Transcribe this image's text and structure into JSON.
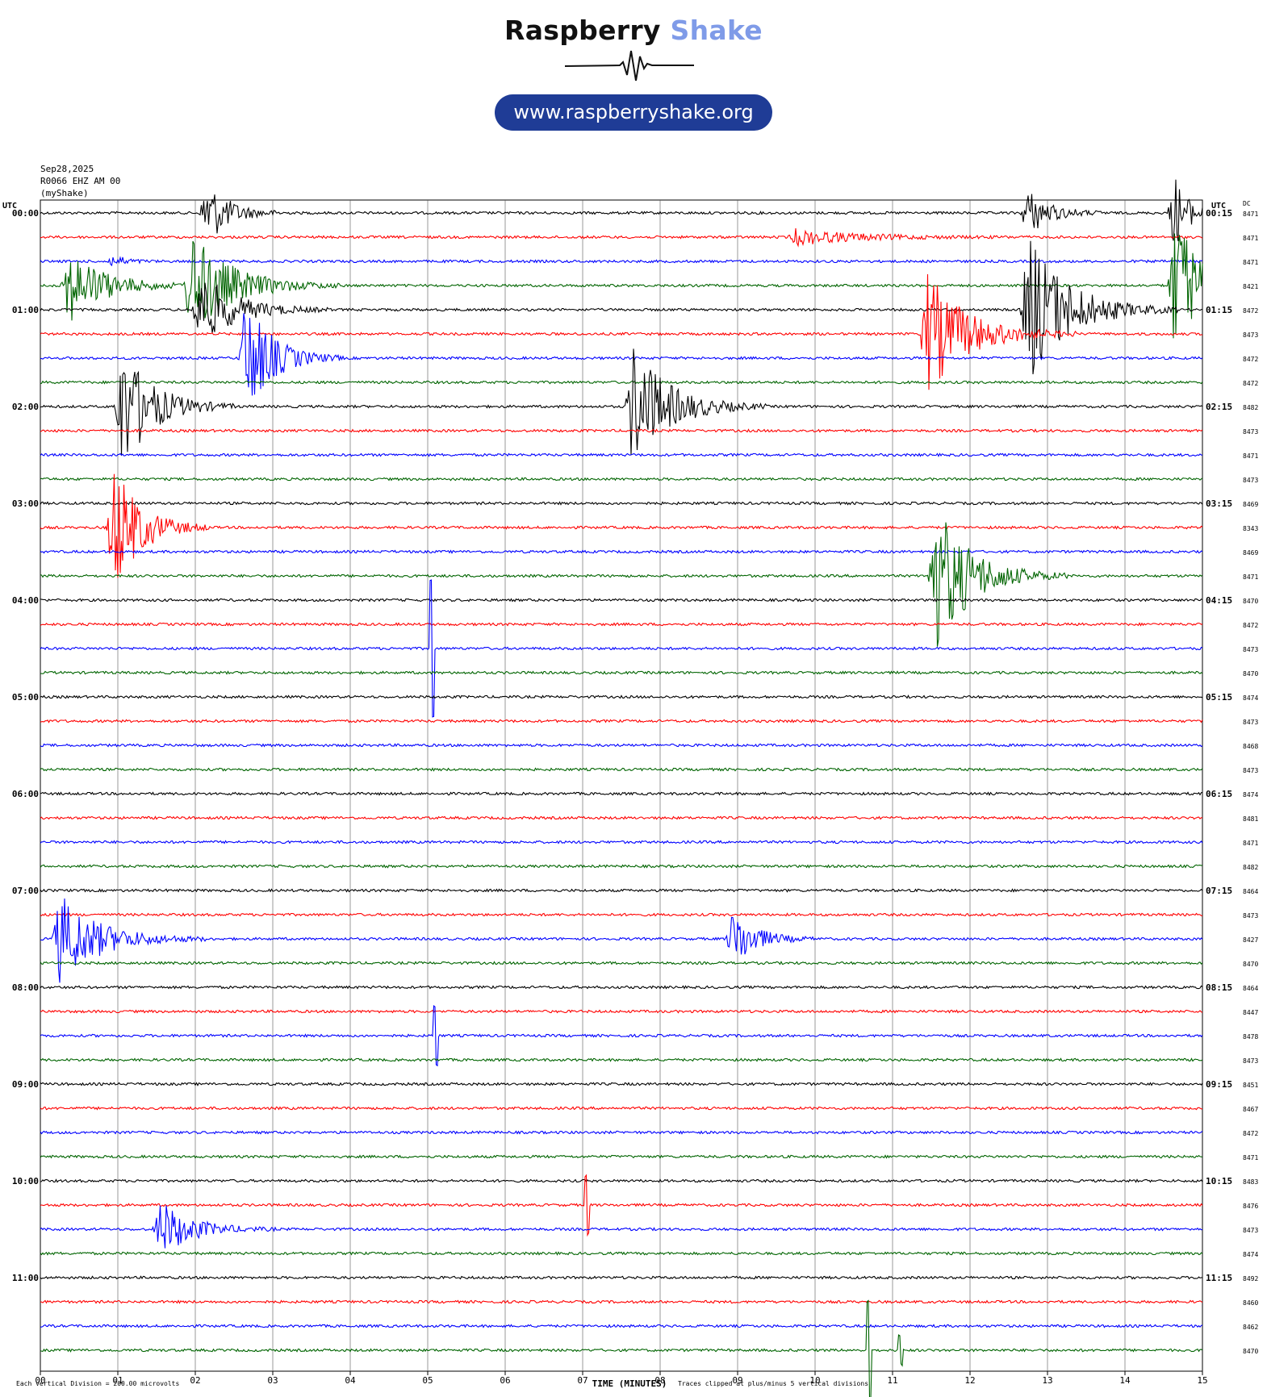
{
  "brand": {
    "name_part1": "Raspberry",
    "name_part2": "Shake",
    "url": "www.raspberryshake.org",
    "colors": {
      "dark": "#111111",
      "light_blue": "#7f9be8",
      "pill": "#1f3c96"
    }
  },
  "header": {
    "date": "Sep28,2025",
    "station": "R0066 EHZ AM 00",
    "network": "(myShake)"
  },
  "chart_data": {
    "type": "helicorder",
    "left_axis_title": "UTC",
    "right_axis_title": "UTC",
    "dc_title": "DC",
    "left_labels": [
      "00:00",
      "01:00",
      "02:00",
      "03:00",
      "04:00",
      "05:00",
      "06:00",
      "07:00",
      "08:00",
      "09:00",
      "10:00",
      "11:00"
    ],
    "right_labels": [
      "00:15",
      "01:15",
      "02:15",
      "03:15",
      "04:15",
      "05:15",
      "06:15",
      "07:15",
      "08:15",
      "09:15",
      "10:15",
      "11:15"
    ],
    "dc_values": [
      "8471",
      "8471",
      "8471",
      "8421",
      "8472",
      "8473",
      "8472",
      "8472",
      "8482",
      "8473",
      "8471",
      "8473",
      "8469",
      "8343",
      "8469",
      "8471",
      "8470",
      "8472",
      "8473",
      "8470",
      "8474",
      "8473",
      "8468",
      "8473",
      "8474",
      "8481",
      "8471",
      "8482",
      "8464",
      "8473",
      "8427",
      "8470",
      "8464",
      "8447",
      "8478",
      "8473",
      "8451",
      "8467",
      "8472",
      "8471",
      "8483",
      "8476",
      "8473",
      "8474",
      "8492",
      "8460",
      "8462",
      "8470"
    ],
    "trace_colors": [
      "#000000",
      "#ff0000",
      "#0000ff",
      "#006400"
    ],
    "x_ticks": [
      "00",
      "01",
      "02",
      "03",
      "04",
      "05",
      "06",
      "07",
      "08",
      "09",
      "10",
      "11",
      "12",
      "13",
      "14",
      "15"
    ],
    "x_label": "TIME (MINUTES)",
    "footer_left": "Each Vertical Division =  200.00 microvolts",
    "footer_right": "Traces clipped at plus/minus 5 vertical divisions",
    "rows_per_hour": 4,
    "minutes_per_row": 15,
    "events": [
      {
        "row": 0,
        "minute": 2.1,
        "amp": 1.7,
        "dur": 0.5,
        "kind": "quake"
      },
      {
        "row": 0,
        "minute": 12.7,
        "amp": 1.2,
        "dur": 0.5,
        "kind": "quake"
      },
      {
        "row": 0,
        "minute": 14.6,
        "amp": 2.0,
        "dur": 0.3,
        "kind": "quake"
      },
      {
        "row": 1,
        "minute": 9.7,
        "amp": 0.4,
        "dur": 1.4,
        "kind": "quake"
      },
      {
        "row": 2,
        "minute": 0.9,
        "amp": 0.3,
        "dur": 0.3,
        "kind": "quake"
      },
      {
        "row": 3,
        "minute": 0.3,
        "amp": 2.0,
        "dur": 0.8,
        "kind": "quake"
      },
      {
        "row": 3,
        "minute": 1.9,
        "amp": 2.8,
        "dur": 0.9,
        "kind": "quake"
      },
      {
        "row": 3,
        "minute": 14.6,
        "amp": 4.0,
        "dur": 0.6,
        "kind": "quake"
      },
      {
        "row": 4,
        "minute": 2.0,
        "amp": 2.0,
        "dur": 0.8,
        "kind": "quake"
      },
      {
        "row": 4,
        "minute": 12.7,
        "amp": 4.0,
        "dur": 0.9,
        "kind": "quake"
      },
      {
        "row": 5,
        "minute": 11.4,
        "amp": 3.2,
        "dur": 0.9,
        "kind": "quake"
      },
      {
        "row": 6,
        "minute": 2.6,
        "amp": 3.2,
        "dur": 0.6,
        "kind": "quake"
      },
      {
        "row": 8,
        "minute": 1.0,
        "amp": 3.3,
        "dur": 0.7,
        "kind": "quake"
      },
      {
        "row": 8,
        "minute": 7.6,
        "amp": 3.3,
        "dur": 0.8,
        "kind": "quake"
      },
      {
        "row": 13,
        "minute": 0.9,
        "amp": 3.5,
        "dur": 0.6,
        "kind": "quake"
      },
      {
        "row": 15,
        "minute": 11.5,
        "amp": 4.0,
        "dur": 0.8,
        "kind": "quake"
      },
      {
        "row": 18,
        "minute": 5.05,
        "amp": 2.8,
        "dur": 0.04,
        "kind": "spike"
      },
      {
        "row": 30,
        "minute": 0.2,
        "amp": 2.3,
        "dur": 0.9,
        "kind": "quake"
      },
      {
        "row": 30,
        "minute": 8.9,
        "amp": 1.6,
        "dur": 0.5,
        "kind": "quake"
      },
      {
        "row": 34,
        "minute": 5.1,
        "amp": 1.2,
        "dur": 0.04,
        "kind": "spike"
      },
      {
        "row": 42,
        "minute": 1.5,
        "amp": 1.5,
        "dur": 0.7,
        "kind": "quake"
      },
      {
        "row": 41,
        "minute": 7.05,
        "amp": 1.2,
        "dur": 0.04,
        "kind": "spike"
      },
      {
        "row": 47,
        "minute": 10.7,
        "amp": 2.0,
        "dur": 0.05,
        "kind": "spike"
      },
      {
        "row": 47,
        "minute": 11.1,
        "amp": 0.6,
        "dur": 0.04,
        "kind": "spike"
      }
    ]
  }
}
